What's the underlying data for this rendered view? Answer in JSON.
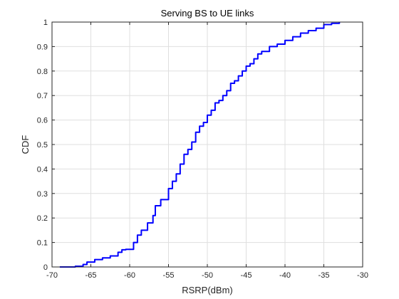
{
  "chart_data": {
    "type": "line",
    "title": "Serving BS to UE links",
    "xlabel": "RSRP(dBm)",
    "ylabel": "CDF",
    "xlim": [
      -70,
      -30
    ],
    "ylim": [
      0,
      1
    ],
    "xticks": [
      -70,
      -65,
      -60,
      -55,
      -50,
      -45,
      -40,
      -35,
      -30
    ],
    "yticks": [
      0,
      0.1,
      0.2,
      0.3,
      0.4,
      0.5,
      0.6,
      0.7,
      0.8,
      0.9,
      1
    ],
    "xtick_labels": [
      "-70",
      "-65",
      "-60",
      "-55",
      "-50",
      "-45",
      "-40",
      "-35",
      "-30"
    ],
    "ytick_labels": [
      "0",
      "0.1",
      "0.2",
      "0.3",
      "0.4",
      "0.5",
      "0.6",
      "0.7",
      "0.8",
      "0.9",
      "1"
    ],
    "grid": true,
    "series": [
      {
        "color": "#0000ff",
        "x": [
          -69,
          -67,
          -66,
          -65.5,
          -64.5,
          -63.5,
          -62.5,
          -61.5,
          -61,
          -60.5,
          -59.5,
          -59,
          -58.5,
          -57.7,
          -57,
          -56.7,
          -56,
          -55,
          -54.5,
          -54,
          -53.5,
          -53,
          -52.5,
          -52,
          -51.5,
          -51,
          -50.5,
          -50,
          -49.5,
          -49,
          -48.5,
          -48,
          -47.5,
          -47,
          -46.5,
          -46,
          -45.5,
          -45,
          -44.5,
          -44,
          -43.5,
          -43,
          -42,
          -41,
          -40,
          -39,
          -38,
          -37,
          -36,
          -35,
          -34,
          -33
        ],
        "y": [
          0,
          0.003,
          0.01,
          0.02,
          0.03,
          0.037,
          0.045,
          0.06,
          0.07,
          0.072,
          0.1,
          0.13,
          0.15,
          0.18,
          0.21,
          0.25,
          0.275,
          0.32,
          0.35,
          0.38,
          0.42,
          0.46,
          0.48,
          0.51,
          0.55,
          0.575,
          0.59,
          0.62,
          0.64,
          0.67,
          0.68,
          0.7,
          0.72,
          0.75,
          0.76,
          0.78,
          0.8,
          0.82,
          0.83,
          0.85,
          0.87,
          0.88,
          0.9,
          0.91,
          0.925,
          0.94,
          0.955,
          0.965,
          0.975,
          0.99,
          0.995,
          1
        ]
      }
    ]
  }
}
